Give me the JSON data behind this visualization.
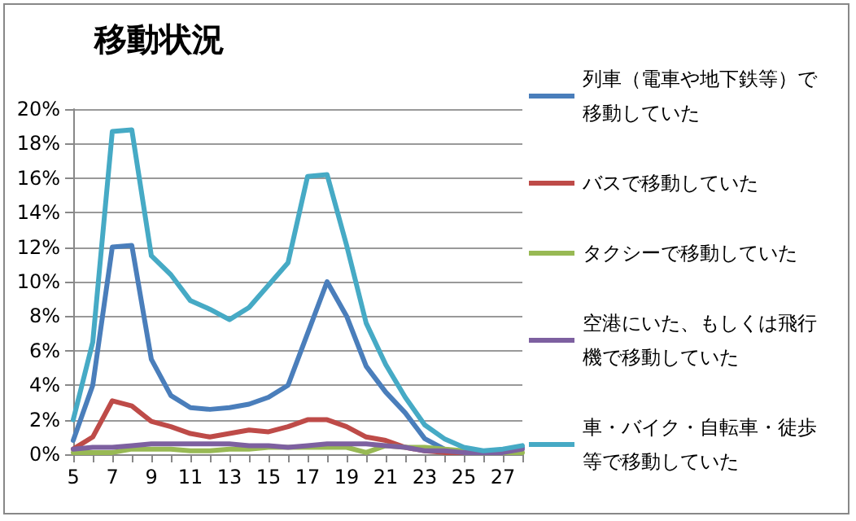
{
  "chart_data": {
    "type": "line",
    "title": "移動状況",
    "categories": [
      "5",
      null,
      "7",
      null,
      "9",
      null,
      "11",
      null,
      "13",
      null,
      "15",
      null,
      "17",
      null,
      "19",
      null,
      "21",
      null,
      "23",
      null,
      "25",
      null,
      "27",
      null
    ],
    "series": [
      {
        "name": "列車（電車や地下鉄等）で移動していた",
        "color": "#4a7ebb",
        "values": [
          0.8,
          4,
          12,
          12.1,
          5.5,
          3.4,
          2.7,
          2.6,
          2.7,
          2.9,
          3.3,
          4,
          7,
          10,
          8,
          5.1,
          3.6,
          2.4,
          0.9,
          0.3,
          0.1,
          0.1,
          0.2,
          0.4
        ]
      },
      {
        "name": "バスで移動していた",
        "color": "#be4b48",
        "values": [
          0.3,
          1,
          3.1,
          2.8,
          1.9,
          1.6,
          1.2,
          1.0,
          1.2,
          1.4,
          1.3,
          1.6,
          2.0,
          2.0,
          1.6,
          1.0,
          0.8,
          0.4,
          0.2,
          0.1,
          0.1,
          0.1,
          null,
          null
        ]
      },
      {
        "name": "タクシーで移動していた",
        "color": "#98b954",
        "values": [
          0.1,
          0.1,
          0.1,
          0.3,
          0.3,
          0.3,
          0.2,
          0.2,
          0.3,
          0.3,
          0.4,
          0.4,
          0.4,
          0.4,
          0.4,
          0.1,
          0.5,
          0.4,
          0.4,
          0.3,
          0.2,
          0.1,
          0.1,
          0.1
        ]
      },
      {
        "name": "空港にいた、もしくは飛行機で移動していた",
        "color": "#7d60a0",
        "values": [
          0.3,
          0.4,
          0.4,
          0.5,
          0.6,
          0.6,
          0.6,
          0.6,
          0.6,
          0.5,
          0.5,
          0.4,
          0.5,
          0.6,
          0.6,
          0.6,
          0.5,
          0.4,
          0.2,
          0.2,
          0.1,
          0.1,
          0.1,
          0.3
        ]
      },
      {
        "name": "車・バイク・自転車・徒歩等で移動していた",
        "color": "#46aac5",
        "values": [
          2,
          6.5,
          18.7,
          18.8,
          11.5,
          10.4,
          8.9,
          8.4,
          7.8,
          8.5,
          9.8,
          11.1,
          16.1,
          16.2,
          12.1,
          7.6,
          5.2,
          3.3,
          1.7,
          0.9,
          0.4,
          0.2,
          0.3,
          0.5
        ]
      }
    ],
    "ylim": [
      0,
      20
    ],
    "yticks": [
      {
        "value": 0,
        "label": "0%"
      },
      {
        "value": 2,
        "label": "2%"
      },
      {
        "value": 4,
        "label": "4%"
      },
      {
        "value": 6,
        "label": "6%"
      },
      {
        "value": 8,
        "label": "8%"
      },
      {
        "value": 10,
        "label": "10%"
      },
      {
        "value": 12,
        "label": "12%"
      },
      {
        "value": 14,
        "label": "14%"
      },
      {
        "value": 16,
        "label": "16%"
      },
      {
        "value": 18,
        "label": "18%"
      },
      {
        "value": 20,
        "label": "20%"
      }
    ],
    "grid": "y",
    "legend": "right",
    "marker": "none",
    "line_style": "solid"
  }
}
